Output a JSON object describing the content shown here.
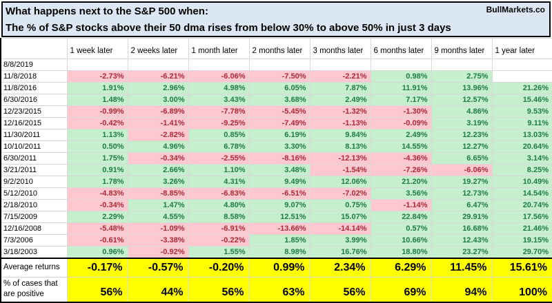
{
  "banner": {
    "title_line1": "What happens next to the S&P 500 when:",
    "title_line2": "The % of S&P stocks above their 50 dma rises from below 30% to above 50% in just 3 days",
    "brand": "BullMarkets.co"
  },
  "table": {
    "columns": [
      "1 week later",
      "2 weeks later",
      "1 month later",
      "2 months later",
      "3 months later",
      "6 months later",
      "9 months later",
      "1 year later"
    ],
    "rows": [
      {
        "date": "8/8/2019",
        "values": [
          "",
          "",
          "",
          "",
          "",
          "",
          "",
          ""
        ]
      },
      {
        "date": "11/8/2018",
        "values": [
          "-2.73%",
          "-6.21%",
          "-6.06%",
          "-7.50%",
          "-2.21%",
          "0.98%",
          "2.75%",
          ""
        ]
      },
      {
        "date": "11/8/2016",
        "values": [
          "1.91%",
          "2.96%",
          "4.98%",
          "6.05%",
          "7.87%",
          "11.91%",
          "13.96%",
          "21.26%"
        ]
      },
      {
        "date": "6/30/2016",
        "values": [
          "1.48%",
          "3.00%",
          "3.43%",
          "3.68%",
          "2.49%",
          "7.17%",
          "12.57%",
          "15.46%"
        ]
      },
      {
        "date": "12/23/2015",
        "values": [
          "-0.99%",
          "-6.89%",
          "-7.78%",
          "-5.45%",
          "-1.32%",
          "-1.30%",
          "4.86%",
          "9.53%"
        ]
      },
      {
        "date": "12/16/2015",
        "values": [
          "-0.42%",
          "-1.41%",
          "-9.25%",
          "-7.49%",
          "-1.13%",
          "-0.09%",
          "3.19%",
          "9.11%"
        ]
      },
      {
        "date": "11/30/2011",
        "values": [
          "1.13%",
          "-2.82%",
          "0.85%",
          "6.19%",
          "9.84%",
          "2.49%",
          "12.23%",
          "13.03%"
        ]
      },
      {
        "date": "10/10/2011",
        "values": [
          "0.50%",
          "4.96%",
          "6.78%",
          "3.30%",
          "8.13%",
          "14.55%",
          "12.27%",
          "20.64%"
        ]
      },
      {
        "date": "6/30/2011",
        "values": [
          "1.75%",
          "-0.34%",
          "-2.55%",
          "-8.16%",
          "-12.13%",
          "-4.36%",
          "6.65%",
          "3.14%"
        ]
      },
      {
        "date": "3/21/2011",
        "values": [
          "0.91%",
          "2.66%",
          "1.10%",
          "3.48%",
          "-1.54%",
          "-7.26%",
          "-6.06%",
          "8.25%"
        ]
      },
      {
        "date": "9/2/2010",
        "values": [
          "1.78%",
          "3.26%",
          "4.31%",
          "9.49%",
          "12.06%",
          "21.20%",
          "19.27%",
          "10.49%"
        ]
      },
      {
        "date": "5/12/2010",
        "values": [
          "-4.83%",
          "-8.85%",
          "-6.83%",
          "-6.51%",
          "-7.02%",
          "3.56%",
          "12.73%",
          "14.54%"
        ]
      },
      {
        "date": "2/18/2010",
        "values": [
          "-0.34%",
          "1.47%",
          "4.80%",
          "9.07%",
          "0.75%",
          "-1.14%",
          "6.47%",
          "20.74%"
        ]
      },
      {
        "date": "7/15/2009",
        "values": [
          "2.29%",
          "4.55%",
          "8.58%",
          "12.51%",
          "15.07%",
          "22.84%",
          "29.91%",
          "17.56%"
        ]
      },
      {
        "date": "12/16/2008",
        "values": [
          "-5.48%",
          "-1.09%",
          "-6.91%",
          "-13.66%",
          "-14.14%",
          "0.57%",
          "16.68%",
          "21.46%"
        ]
      },
      {
        "date": "7/3/2006",
        "values": [
          "-0.61%",
          "-3.38%",
          "-0.22%",
          "1.85%",
          "3.99%",
          "10.66%",
          "12.43%",
          "19.15%"
        ]
      },
      {
        "date": "3/18/2003",
        "values": [
          "0.96%",
          "-0.92%",
          "1.55%",
          "8.98%",
          "16.76%",
          "18.80%",
          "23.27%",
          "29.70%"
        ]
      }
    ],
    "summary": {
      "average_label": "Average returns",
      "average_values": [
        "-0.17%",
        "-0.57%",
        "-0.20%",
        "0.99%",
        "2.34%",
        "6.29%",
        "11.45%",
        "15.61%"
      ],
      "positive_label": "% of cases that are positive",
      "positive_values": [
        "56%",
        "44%",
        "56%",
        "63%",
        "56%",
        "69%",
        "94%",
        "100%"
      ]
    }
  },
  "colors": {
    "banner_bg": "#DBE8F4",
    "positive_bg": "#C6EFCE",
    "positive_text": "#1E7B46",
    "negative_bg": "#FFC7CE",
    "negative_text": "#AA2A38",
    "summary_bg": "#FFFF00",
    "gridline": "#D8D8D8"
  },
  "chart_data": {
    "type": "table",
    "title": "What happens next to the S&P 500 when: The % of S&P stocks above their 50 dma rises from below 30% to above 50% in just 3 days",
    "columns": [
      "1 week later",
      "2 weeks later",
      "1 month later",
      "2 months later",
      "3 months later",
      "6 months later",
      "9 months later",
      "1 year later"
    ],
    "row_labels": [
      "8/8/2019",
      "11/8/2018",
      "11/8/2016",
      "6/30/2016",
      "12/23/2015",
      "12/16/2015",
      "11/30/2011",
      "10/10/2011",
      "6/30/2011",
      "3/21/2011",
      "9/2/2010",
      "5/12/2010",
      "2/18/2010",
      "7/15/2009",
      "12/16/2008",
      "7/3/2006",
      "3/18/2003"
    ],
    "average_returns_pct": [
      -0.17,
      -0.57,
      -0.2,
      0.99,
      2.34,
      6.29,
      11.45,
      15.61
    ],
    "pct_cases_positive": [
      56,
      44,
      56,
      63,
      56,
      69,
      94,
      100
    ]
  }
}
